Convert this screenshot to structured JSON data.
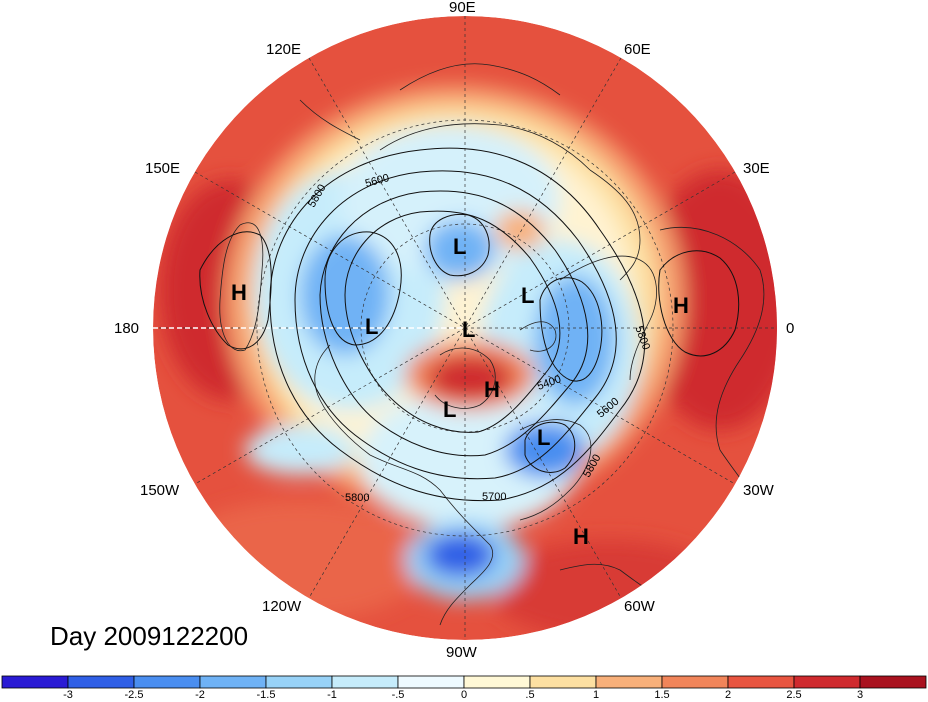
{
  "map": {
    "lon_labels": {
      "e90": "90E",
      "e120": "120E",
      "e60": "60E",
      "e150": "150E",
      "e30": "30E",
      "d180": "180",
      "d0": "0",
      "w150": "150W",
      "w30": "30W",
      "w120": "120W",
      "w60": "60W",
      "w90": "90W"
    },
    "contour_labels": [
      "5800",
      "5600",
      "5400",
      "5600",
      "5800",
      "5800",
      "5700",
      "5800"
    ],
    "pressure_centers": [
      {
        "type": "H"
      },
      {
        "type": "H"
      },
      {
        "type": "H"
      },
      {
        "type": "H"
      },
      {
        "type": "L"
      },
      {
        "type": "L"
      },
      {
        "type": "L"
      },
      {
        "type": "L"
      },
      {
        "type": "L"
      },
      {
        "type": "L"
      }
    ],
    "day_label": "Day 2009122200"
  },
  "colorbar": {
    "colors": [
      "#2a1bd4",
      "#2f5fe6",
      "#4a8ef0",
      "#6fb2f5",
      "#98d2f7",
      "#c6ecfb",
      "#eefaff",
      "#fff8d6",
      "#fde0a2",
      "#f8b07a",
      "#f1855a",
      "#e85540",
      "#cf2a2e",
      "#a9121f"
    ],
    "ticks": [
      "-3",
      "-2.5",
      "-2",
      "-1.5",
      "-1",
      "-.5",
      "0",
      ".5",
      "1",
      "1.5",
      "2",
      "2.5",
      "3"
    ]
  },
  "colors": {
    "deep_blue": "#2a1bd4",
    "dark_red": "#a9121f",
    "neutral": "#eefaff"
  }
}
